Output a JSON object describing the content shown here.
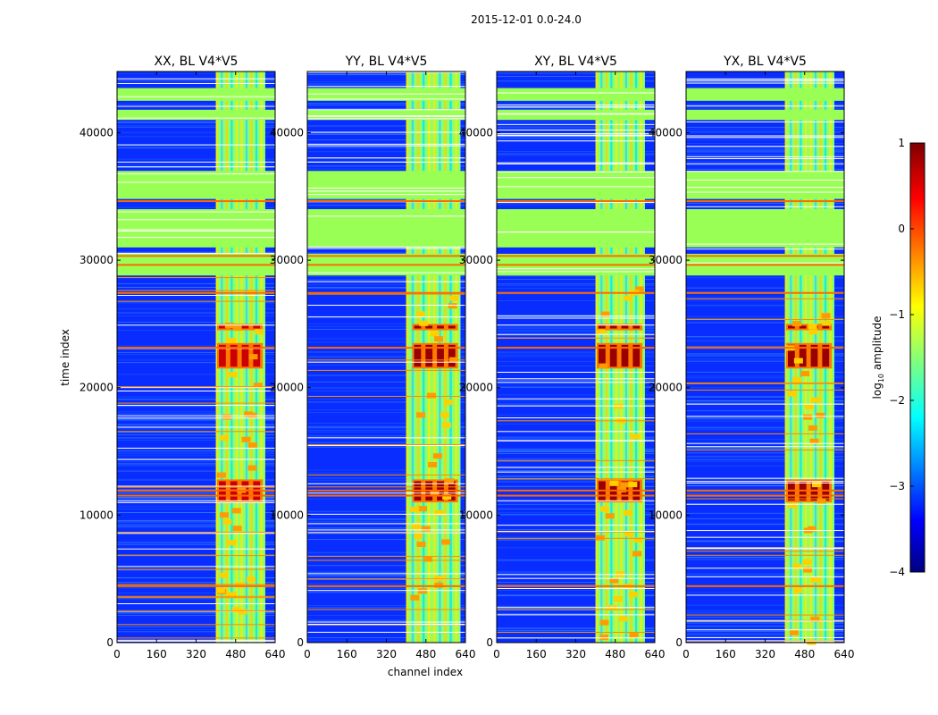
{
  "chart_data": {
    "type": "heatmap",
    "suptitle": "2015-12-01 0.0-24.0",
    "xlabel": "channel index",
    "ylabel": "time index",
    "xlim": [
      0,
      640
    ],
    "ylim": [
      0,
      44800
    ],
    "xticks": [
      0,
      160,
      320,
      480,
      640
    ],
    "yticks": [
      0,
      10000,
      20000,
      30000,
      40000
    ],
    "colorbar": {
      "label_main": "log",
      "label_sub": "10",
      "label_rest": " amplitude",
      "range": [
        -4,
        1
      ],
      "ticks": [
        1,
        0,
        -1,
        -2,
        -3,
        -4
      ],
      "colormap": "jet"
    },
    "panels": [
      {
        "title": "XX, BL V4*V5",
        "hot_channels": [
          400,
          600
        ],
        "peak_channel_shift": 0
      },
      {
        "title": "YY, BL V4*V5",
        "hot_channels": [
          400,
          620
        ],
        "peak_channel_shift": 20
      },
      {
        "title": "XY, BL V4*V5",
        "hot_channels": [
          400,
          600
        ],
        "peak_channel_shift": 0
      },
      {
        "title": "YX, BL V4*V5",
        "hot_channels": [
          400,
          600
        ],
        "peak_channel_shift": 0
      }
    ],
    "flagged_time_ranges": [
      [
        28800,
        30500
      ],
      [
        31000,
        34000
      ],
      [
        34800,
        37000
      ],
      [
        41000,
        41800
      ],
      [
        42500,
        43500
      ]
    ],
    "bright_time_bands": [
      [
        11000,
        12800
      ],
      [
        21500,
        23500
      ],
      [
        24500,
        25000
      ]
    ]
  },
  "colors": {
    "flag_green": "#99ff55",
    "flag_orange": "#ff6a00",
    "background_blue": "#0a2dff",
    "text": "#000000"
  }
}
